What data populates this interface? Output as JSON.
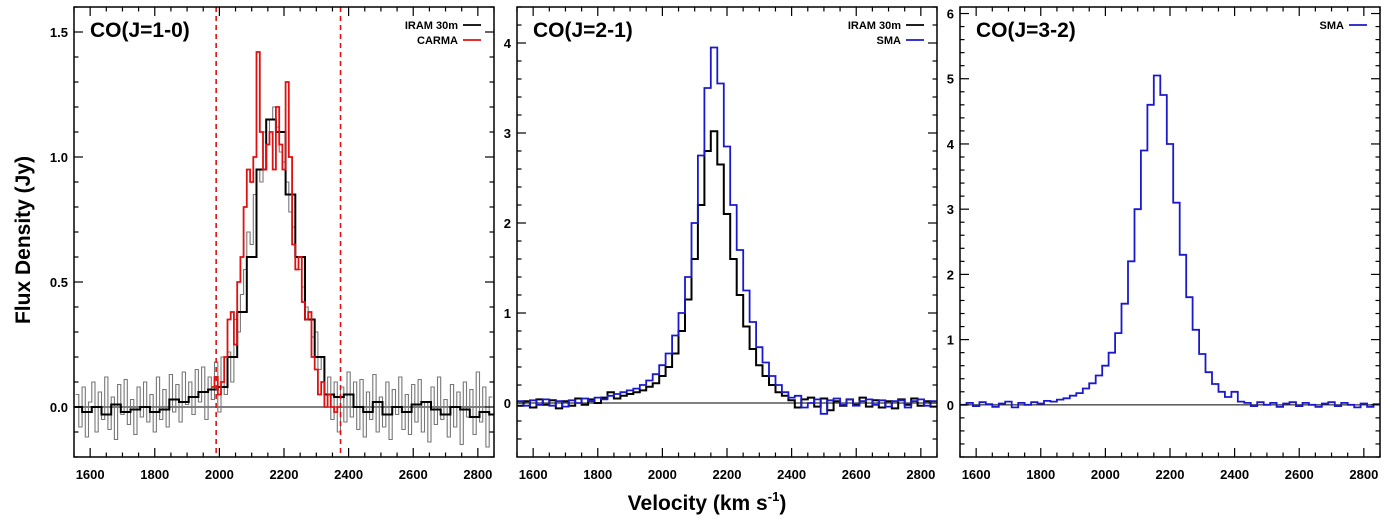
{
  "figure": {
    "ylabel": "Flux Density (Jy)",
    "xlabel_main": "Velocity (km s",
    "xlabel_sup": "-1",
    "xlabel_close": ")"
  },
  "chart_data": [
    {
      "type": "line",
      "title": "CO(J=1-0)",
      "xlim": [
        1550,
        2850
      ],
      "ylim": [
        -0.2,
        1.6
      ],
      "yticks": [
        0.0,
        0.5,
        1.0,
        1.5
      ],
      "ytick_labels": [
        "0.0",
        "0.5",
        "1.0",
        "1.5"
      ],
      "xticks": [
        1600,
        1800,
        2000,
        2200,
        2400,
        2600,
        2800
      ],
      "xtick_labels": [
        "1600",
        "1800",
        "2000",
        "2200",
        "2400",
        "2600",
        "2800"
      ],
      "vlines": [
        1990,
        2375
      ],
      "legend_position": "top-right",
      "series": [
        {
          "name": "IRAM 30m",
          "color": "#000000",
          "style": "step",
          "x": [
            1560,
            1590,
            1620,
            1650,
            1680,
            1710,
            1740,
            1770,
            1800,
            1830,
            1860,
            1890,
            1920,
            1950,
            1980,
            2010,
            2040,
            2070,
            2100,
            2130,
            2160,
            2190,
            2220,
            2250,
            2280,
            2310,
            2340,
            2370,
            2400,
            2430,
            2460,
            2490,
            2520,
            2550,
            2580,
            2610,
            2640,
            2670,
            2700,
            2730,
            2760,
            2790,
            2820,
            2850
          ],
          "values": [
            0.0,
            -0.02,
            0.0,
            -0.03,
            0.01,
            -0.02,
            -0.01,
            0.0,
            -0.02,
            -0.01,
            0.03,
            0.02,
            0.04,
            0.06,
            0.07,
            0.08,
            0.2,
            0.38,
            0.6,
            0.95,
            1.15,
            1.1,
            0.85,
            0.6,
            0.35,
            0.2,
            0.05,
            0.04,
            0.05,
            0.0,
            -0.02,
            0.02,
            -0.03,
            0.0,
            -0.02,
            0.01,
            0.02,
            -0.01,
            -0.03,
            0.0,
            -0.01,
            -0.04,
            -0.02,
            -0.03
          ]
        },
        {
          "name": "CARMA",
          "color": "#e01010",
          "style": "step",
          "x": [
            1980,
            1990,
            2000,
            2010,
            2020,
            2030,
            2040,
            2050,
            2060,
            2070,
            2080,
            2090,
            2100,
            2110,
            2120,
            2130,
            2140,
            2150,
            2160,
            2170,
            2180,
            2190,
            2200,
            2210,
            2220,
            2230,
            2240,
            2250,
            2260,
            2270,
            2280,
            2290,
            2300,
            2310,
            2320,
            2330,
            2340,
            2350,
            2360,
            2370
          ],
          "values": [
            0.08,
            0.12,
            0.05,
            0.1,
            0.2,
            0.35,
            0.38,
            0.25,
            0.5,
            0.6,
            0.8,
            0.95,
            0.9,
            1.0,
            1.42,
            1.1,
            0.95,
            1.05,
            1.1,
            0.95,
            1.2,
            1.05,
            0.95,
            1.3,
            1.0,
            0.65,
            0.55,
            0.6,
            0.42,
            0.35,
            0.38,
            0.2,
            0.15,
            0.05,
            0.1,
            0.0,
            0.05,
            0.0,
            -0.02,
            0.0
          ]
        },
        {
          "name": "",
          "color": "#777777",
          "style": "step",
          "x": [
            1560,
            1570,
            1580,
            1590,
            1600,
            1610,
            1620,
            1630,
            1640,
            1650,
            1660,
            1670,
            1680,
            1690,
            1700,
            1710,
            1720,
            1730,
            1740,
            1750,
            1760,
            1770,
            1780,
            1790,
            1800,
            1810,
            1820,
            1830,
            1840,
            1850,
            1860,
            1870,
            1880,
            1890,
            1900,
            1910,
            1920,
            1930,
            1940,
            1950,
            1960,
            1970,
            1980,
            1990,
            2000,
            2010,
            2020,
            2030,
            2040,
            2050,
            2060,
            2070,
            2080,
            2090,
            2100,
            2110,
            2120,
            2130,
            2140,
            2150,
            2160,
            2170,
            2180,
            2190,
            2200,
            2210,
            2220,
            2230,
            2240,
            2250,
            2260,
            2270,
            2280,
            2290,
            2300,
            2310,
            2320,
            2330,
            2340,
            2350,
            2360,
            2370,
            2380,
            2390,
            2400,
            2410,
            2420,
            2430,
            2440,
            2450,
            2460,
            2470,
            2480,
            2490,
            2500,
            2510,
            2520,
            2530,
            2540,
            2550,
            2560,
            2570,
            2580,
            2590,
            2600,
            2610,
            2620,
            2630,
            2640,
            2650,
            2660,
            2670,
            2680,
            2690,
            2700,
            2710,
            2720,
            2730,
            2740,
            2750,
            2760,
            2770,
            2780,
            2790,
            2800,
            2810,
            2820,
            2830,
            2840
          ],
          "values": [
            0.05,
            -0.08,
            0.08,
            -0.12,
            0.02,
            0.1,
            -0.1,
            0.06,
            -0.05,
            0.12,
            -0.09,
            0.04,
            -0.13,
            0.09,
            -0.03,
            0.11,
            -0.07,
            0.03,
            -0.11,
            0.08,
            -0.04,
            0.1,
            -0.06,
            0.05,
            -0.1,
            0.12,
            -0.05,
            0.07,
            -0.08,
            0.13,
            -0.02,
            0.09,
            -0.06,
            0.14,
            0.01,
            0.1,
            -0.03,
            0.15,
            0.02,
            0.16,
            -0.05,
            0.12,
            0.03,
            0.18,
            -0.02,
            0.2,
            0.05,
            0.22,
            0.1,
            0.35,
            0.3,
            0.45,
            0.55,
            0.7,
            0.65,
            0.85,
            0.95,
            0.9,
            1.1,
            1.05,
            1.15,
            1.2,
            1.12,
            1.02,
            0.98,
            0.9,
            0.78,
            0.72,
            0.6,
            0.55,
            0.48,
            0.4,
            0.35,
            0.28,
            0.3,
            0.15,
            0.2,
            0.05,
            0.12,
            -0.05,
            0.1,
            -0.1,
            0.08,
            -0.06,
            0.14,
            -0.04,
            0.1,
            -0.09,
            0.11,
            -0.12,
            0.06,
            -0.05,
            0.13,
            -0.1,
            0.04,
            -0.08,
            0.1,
            -0.13,
            0.07,
            -0.03,
            0.12,
            -0.09,
            0.05,
            -0.11,
            0.09,
            -0.06,
            0.11,
            -0.1,
            0.02,
            -0.14,
            0.08,
            -0.07,
            0.12,
            -0.05,
            0.03,
            -0.12,
            0.09,
            -0.08,
            0.06,
            -0.15,
            0.1,
            -0.04,
            0.07,
            -0.11,
            0.14,
            -0.06,
            0.08,
            -0.16,
            0.04
          ]
        }
      ]
    },
    {
      "type": "line",
      "title": "CO(J=2-1)",
      "xlim": [
        1550,
        2850
      ],
      "ylim": [
        -0.6,
        4.4
      ],
      "yticks": [
        0,
        1,
        2,
        3,
        4
      ],
      "ytick_labels": [
        "0",
        "1",
        "2",
        "3",
        "4"
      ],
      "xticks": [
        1600,
        1800,
        2000,
        2200,
        2400,
        2600,
        2800
      ],
      "xtick_labels": [
        "1600",
        "1800",
        "2000",
        "2200",
        "2400",
        "2600",
        "2800"
      ],
      "legend_position": "top-right",
      "series": [
        {
          "name": "IRAM 30m",
          "color": "#000000",
          "style": "step",
          "x": [
            1560,
            1580,
            1600,
            1620,
            1640,
            1660,
            1680,
            1700,
            1720,
            1740,
            1760,
            1780,
            1800,
            1820,
            1840,
            1860,
            1880,
            1900,
            1920,
            1940,
            1960,
            1980,
            2000,
            2020,
            2040,
            2060,
            2080,
            2100,
            2120,
            2140,
            2160,
            2180,
            2200,
            2220,
            2240,
            2260,
            2280,
            2300,
            2320,
            2340,
            2360,
            2380,
            2400,
            2420,
            2440,
            2460,
            2480,
            2500,
            2520,
            2540,
            2560,
            2580,
            2600,
            2620,
            2640,
            2660,
            2680,
            2700,
            2720,
            2740,
            2760,
            2780,
            2800,
            2820,
            2840
          ],
          "values": [
            -0.03,
            0.02,
            -0.05,
            0.04,
            -0.02,
            0.03,
            -0.06,
            0.02,
            -0.03,
            0.05,
            -0.02,
            0.04,
            0.0,
            0.06,
            0.12,
            0.05,
            0.08,
            0.1,
            0.12,
            0.14,
            0.18,
            0.22,
            0.3,
            0.4,
            0.55,
            0.8,
            1.15,
            1.6,
            2.2,
            2.8,
            3.02,
            2.65,
            2.1,
            1.6,
            1.2,
            0.85,
            0.6,
            0.42,
            0.3,
            0.2,
            0.12,
            0.08,
            0.03,
            -0.05,
            0.04,
            0.06,
            -0.04,
            0.05,
            -0.08,
            0.02,
            -0.03,
            0.04,
            -0.02,
            0.06,
            -0.04,
            0.03,
            -0.05,
            0.02,
            -0.06,
            0.04,
            -0.02,
            0.05,
            -0.03,
            0.02,
            -0.04
          ]
        },
        {
          "name": "SMA",
          "color": "#1a1acc",
          "style": "step",
          "x": [
            1560,
            1580,
            1600,
            1620,
            1640,
            1660,
            1680,
            1700,
            1720,
            1740,
            1760,
            1780,
            1800,
            1820,
            1840,
            1860,
            1880,
            1900,
            1920,
            1940,
            1960,
            1980,
            2000,
            2020,
            2040,
            2060,
            2080,
            2100,
            2120,
            2140,
            2160,
            2180,
            2200,
            2220,
            2240,
            2260,
            2280,
            2300,
            2320,
            2340,
            2360,
            2380,
            2400,
            2420,
            2440,
            2460,
            2480,
            2500,
            2520,
            2540,
            2560,
            2580,
            2600,
            2620,
            2640,
            2660,
            2680,
            2700,
            2720,
            2740,
            2760,
            2780,
            2800,
            2820,
            2840
          ],
          "values": [
            0.02,
            -0.03,
            0.03,
            -0.02,
            0.04,
            -0.03,
            0.02,
            -0.04,
            0.03,
            0.0,
            0.05,
            0.02,
            0.06,
            0.04,
            0.08,
            0.1,
            0.12,
            0.14,
            0.16,
            0.2,
            0.25,
            0.32,
            0.42,
            0.55,
            0.75,
            1.0,
            1.4,
            2.0,
            2.75,
            3.5,
            3.95,
            3.55,
            2.85,
            2.2,
            1.7,
            1.25,
            0.9,
            0.62,
            0.45,
            0.3,
            0.2,
            0.12,
            0.06,
            0.08,
            -0.05,
            0.0,
            0.04,
            -0.12,
            0.03,
            0.05,
            -0.02,
            0.04,
            -0.03,
            0.02,
            0.04,
            -0.02,
            0.03,
            -0.04,
            0.02,
            0.03,
            -0.05,
            0.02,
            0.04,
            -0.03,
            0.02
          ]
        }
      ]
    },
    {
      "type": "line",
      "title": "CO(J=3-2)",
      "xlim": [
        1550,
        2850
      ],
      "ylim": [
        -0.8,
        6.1
      ],
      "yticks": [
        0,
        1,
        2,
        3,
        4,
        5,
        6
      ],
      "ytick_labels": [
        "0",
        "1",
        "2",
        "3",
        "4",
        "5",
        "6"
      ],
      "xticks": [
        1600,
        1800,
        2000,
        2200,
        2400,
        2600,
        2800
      ],
      "xtick_labels": [
        "1600",
        "1800",
        "2000",
        "2200",
        "2400",
        "2600",
        "2800"
      ],
      "legend_position": "top-right",
      "series": [
        {
          "name": "SMA",
          "color": "#1a1acc",
          "style": "step",
          "x": [
            1560,
            1580,
            1600,
            1620,
            1640,
            1660,
            1680,
            1700,
            1720,
            1740,
            1760,
            1780,
            1800,
            1820,
            1840,
            1860,
            1880,
            1900,
            1920,
            1940,
            1960,
            1980,
            2000,
            2020,
            2040,
            2060,
            2080,
            2100,
            2120,
            2140,
            2160,
            2180,
            2200,
            2220,
            2240,
            2260,
            2280,
            2300,
            2320,
            2340,
            2360,
            2380,
            2400,
            2420,
            2440,
            2460,
            2480,
            2500,
            2520,
            2540,
            2560,
            2580,
            2600,
            2620,
            2640,
            2660,
            2680,
            2700,
            2720,
            2740,
            2760,
            2780,
            2800,
            2820,
            2840
          ],
          "values": [
            0.0,
            0.03,
            -0.02,
            0.04,
            0.01,
            -0.03,
            0.02,
            0.05,
            -0.04,
            0.03,
            0.0,
            0.04,
            0.02,
            0.06,
            0.05,
            0.08,
            0.1,
            0.14,
            0.18,
            0.25,
            0.33,
            0.45,
            0.6,
            0.8,
            1.1,
            1.55,
            2.2,
            3.0,
            3.9,
            4.6,
            5.05,
            4.75,
            4.0,
            3.1,
            2.3,
            1.65,
            1.15,
            0.78,
            0.5,
            0.32,
            0.2,
            0.12,
            0.2,
            0.05,
            0.03,
            -0.02,
            0.04,
            0.0,
            0.03,
            -0.03,
            0.02,
            0.04,
            -0.02,
            0.03,
            0.0,
            -0.03,
            0.02,
            0.04,
            -0.02,
            0.03,
            0.0,
            -0.04,
            0.02,
            -0.03,
            0.01
          ]
        }
      ]
    }
  ]
}
